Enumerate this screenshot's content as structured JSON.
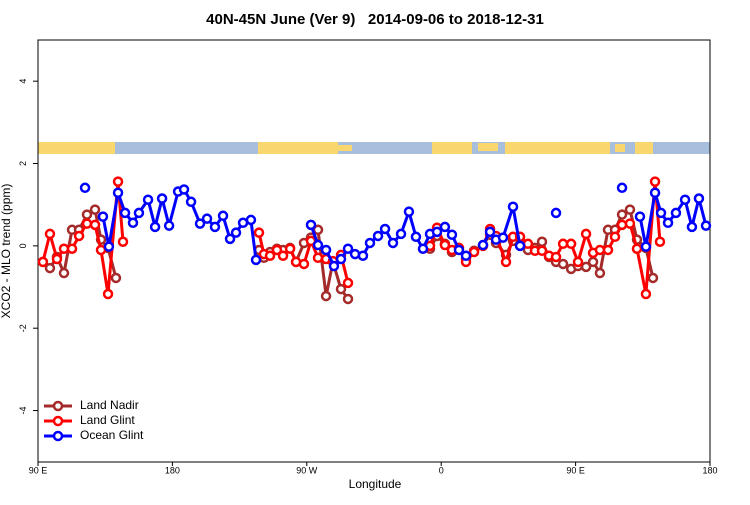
{
  "chart_data": {
    "type": "line",
    "title": "40N-45N June (Ver 9)   2014-09-06 to 2018-12-31",
    "x_label": "Longitude",
    "y_label": "XCO2 - MLO trend (ppm)",
    "xlim": [
      90,
      540
    ],
    "xticks": [
      {
        "value": 90,
        "label": "90 E"
      },
      {
        "value": 180,
        "label": "180"
      },
      {
        "value": 270,
        "label": "90 W"
      },
      {
        "value": 360,
        "label": "0"
      },
      {
        "value": 450,
        "label": "90 E"
      },
      {
        "value": 540,
        "label": "180"
      }
    ],
    "ylim": [
      -5.25,
      5
    ],
    "yticks": [
      -4,
      -2,
      0,
      2,
      4
    ],
    "legend": "bottom left",
    "series": [
      {
        "name": "Land Nadir",
        "color": "#a52a2a",
        "x": [
          93.3,
          98.0,
          102.7,
          107.4,
          112.8,
          117.5,
          122.8,
          128.2,
          132.2,
          136.9,
          142.2,
          null,
          238.0,
          241.3,
          245.4,
          250.0,
          254.1,
          258.8,
          262.8,
          268.1,
          272.8,
          277.5,
          282.9,
          287.5,
          292.9,
          297.6,
          null,
          352.5,
          357.2,
          362.5,
          367.2,
          371.9,
          376.6,
          382.0,
          388.0,
          392.7,
          396.7,
          403.4,
          408.1,
          412.8,
          418.1,
          422.8,
          427.5,
          432.2,
          436.9,
          441.6,
          447.0,
          451.6,
          457.0,
          461.7,
          466.3,
          471.7,
          476.4,
          481.1,
          486.4,
          491.1,
          497.1,
          501.8
        ],
        "values": [
          -0.39,
          -0.54,
          -0.27,
          -0.66,
          0.39,
          0.39,
          0.76,
          0.88,
          0.15,
          -0.05,
          -0.78,
          null,
          -0.1,
          -0.29,
          -0.15,
          -0.07,
          -0.1,
          -0.05,
          -0.39,
          0.07,
          0.2,
          0.39,
          -1.22,
          -0.39,
          -1.05,
          -1.29,
          null,
          -0.07,
          0.24,
          0.05,
          -0.15,
          -0.05,
          -0.32,
          -0.12,
          0.02,
          0.27,
          0.07,
          -0.22,
          0.12,
          0.02,
          -0.1,
          -0.05,
          0.1,
          -0.27,
          -0.39,
          -0.44,
          -0.56,
          -0.49,
          -0.51,
          -0.39,
          -0.66,
          0.39,
          0.39,
          0.76,
          0.88,
          0.15,
          -0.05,
          -0.78
        ]
      },
      {
        "name": "Land Glint",
        "color": "#ff0000",
        "x": [
          93.3,
          98.0,
          102.7,
          107.4,
          112.8,
          117.5,
          122.8,
          128.2,
          132.2,
          136.9,
          143.6,
          146.9,
          null,
          238.0,
          241.3,
          245.4,
          250.0,
          254.1,
          258.8,
          262.8,
          268.1,
          272.8,
          277.5,
          282.9,
          287.5,
          292.9,
          297.6,
          null,
          352.5,
          357.2,
          362.5,
          367.2,
          371.9,
          376.6,
          382.0,
          388.0,
          392.7,
          396.7,
          403.4,
          408.1,
          412.8,
          418.1,
          422.8,
          427.5,
          432.2,
          436.9,
          441.6,
          447.0,
          451.6,
          457.0,
          461.7,
          466.3,
          471.7,
          476.4,
          481.1,
          486.4,
          491.1,
          497.1,
          503.2,
          506.5
        ],
        "values": [
          -0.39,
          0.29,
          -0.32,
          -0.07,
          -0.07,
          0.24,
          0.54,
          0.51,
          -0.1,
          -1.17,
          1.56,
          0.1,
          null,
          0.32,
          -0.2,
          -0.24,
          -0.1,
          -0.24,
          -0.07,
          -0.39,
          -0.44,
          0.12,
          -0.29,
          -0.32,
          -0.37,
          -0.22,
          -0.9,
          null,
          0.0,
          0.44,
          0.02,
          -0.1,
          -0.05,
          -0.39,
          -0.15,
          0.0,
          0.41,
          0.24,
          -0.39,
          0.22,
          0.22,
          0.05,
          -0.12,
          -0.12,
          -0.24,
          -0.27,
          0.05,
          0.05,
          -0.39,
          0.29,
          -0.17,
          -0.1,
          -0.1,
          0.22,
          0.51,
          0.54,
          -0.07,
          -1.17,
          1.56,
          0.1
        ]
      },
      {
        "name": "Ocean Glint",
        "color": "#0000ff",
        "x": [
          121.5,
          null,
          133.5,
          137.5,
          143.6,
          148.3,
          153.6,
          157.6,
          163.7,
          168.4,
          173.1,
          177.8,
          183.8,
          187.8,
          192.5,
          198.5,
          203.2,
          208.5,
          213.9,
          218.6,
          222.6,
          227.3,
          232.6,
          236.0,
          null,
          272.8,
          277.5,
          282.9,
          288.2,
          292.9,
          297.6,
          302.3,
          307.6,
          312.3,
          317.7,
          322.4,
          327.7,
          333.1,
          338.4,
          343.1,
          347.8,
          352.5,
          357.2,
          362.5,
          367.2,
          371.9,
          376.6,
          null,
          388.0,
          392.7,
          396.7,
          401.4,
          408.1,
          412.8,
          null,
          436.9,
          null,
          481.1,
          null,
          493.1,
          497.1,
          503.2,
          507.2,
          511.9,
          517.2,
          523.3,
          527.9,
          532.6,
          537.3
        ],
        "values": [
          1.41,
          null,
          0.71,
          -0.02,
          1.29,
          0.8,
          0.56,
          0.8,
          1.12,
          0.46,
          1.15,
          0.49,
          1.32,
          1.37,
          1.07,
          0.54,
          0.66,
          0.46,
          0.73,
          0.17,
          0.32,
          0.56,
          0.63,
          -0.34,
          null,
          0.51,
          0.02,
          -0.1,
          -0.49,
          -0.32,
          -0.07,
          -0.2,
          -0.24,
          0.07,
          0.24,
          0.41,
          0.07,
          0.29,
          0.83,
          0.22,
          -0.07,
          0.29,
          0.34,
          0.46,
          0.27,
          -0.1,
          -0.24,
          null,
          0.02,
          0.34,
          0.15,
          0.2,
          0.95,
          0.0,
          null,
          0.8,
          null,
          1.41,
          null,
          0.71,
          -0.02,
          1.29,
          0.8,
          0.56,
          0.8,
          1.12,
          0.46,
          1.15,
          0.49
        ]
      }
    ]
  }
}
